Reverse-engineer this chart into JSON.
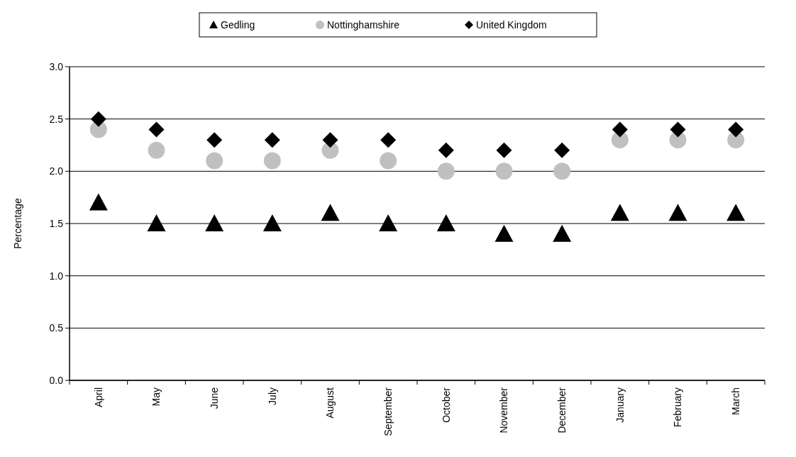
{
  "chart_data": {
    "type": "scatter",
    "ylabel": "Percentage",
    "categories": [
      "April",
      "May",
      "June",
      "July",
      "August",
      "September",
      "October",
      "November",
      "December",
      "January",
      "February",
      "March"
    ],
    "series": [
      {
        "name": "Gedling",
        "color": "#000000",
        "marker": "triangle",
        "values": [
          1.7,
          1.5,
          1.5,
          1.5,
          1.6,
          1.5,
          1.5,
          1.4,
          1.4,
          1.6,
          1.6,
          1.6
        ]
      },
      {
        "name": "Nottinghamshire",
        "color": "#c0c0c0",
        "marker": "circle",
        "values": [
          2.4,
          2.2,
          2.1,
          2.1,
          2.2,
          2.1,
          2.0,
          2.0,
          2.0,
          2.3,
          2.3,
          2.3
        ]
      },
      {
        "name": "United Kingdom",
        "color": "#000000",
        "marker": "diamond",
        "values": [
          2.5,
          2.4,
          2.3,
          2.3,
          2.3,
          2.3,
          2.2,
          2.2,
          2.2,
          2.4,
          2.4,
          2.4
        ]
      }
    ],
    "ylim": [
      0,
      3
    ],
    "yticks": [
      {
        "value": 0,
        "label": "0.0"
      },
      {
        "value": 0.5,
        "label": "0.5"
      },
      {
        "value": 1,
        "label": "1.0"
      },
      {
        "value": 1.5,
        "label": "1.5"
      },
      {
        "value": 2,
        "label": "2.0"
      },
      {
        "value": 2.5,
        "label": "2.5"
      },
      {
        "value": 3,
        "label": "3.0"
      }
    ],
    "grid": "y",
    "legend": "top"
  }
}
